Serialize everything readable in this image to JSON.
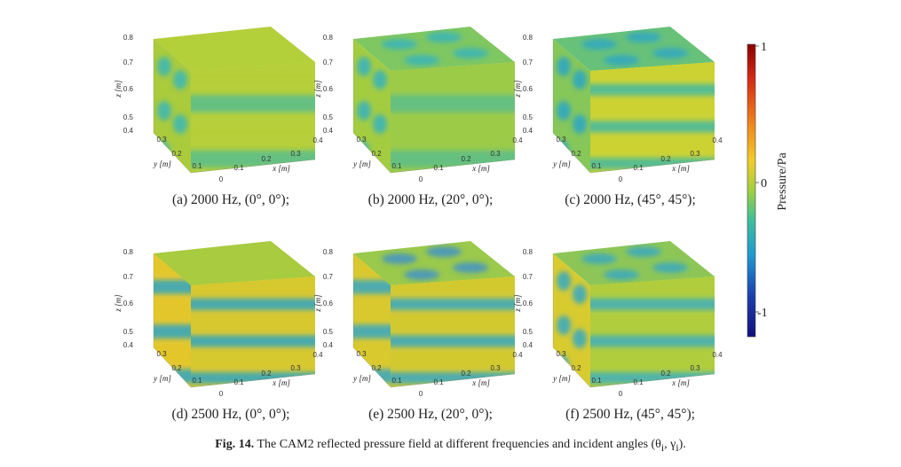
{
  "panels": [
    {
      "id": "a",
      "label": "(a) 2000 Hz, (0°, 0°);",
      "pattern": "a"
    },
    {
      "id": "b",
      "label": "(b) 2000 Hz, (20°, 0°);",
      "pattern": "b"
    },
    {
      "id": "c",
      "label": "(c) 2000 Hz, (45°, 45°);",
      "pattern": "c"
    },
    {
      "id": "d",
      "label": "(d) 2500 Hz, (0°, 0°);",
      "pattern": "d"
    },
    {
      "id": "e",
      "label": "(e) 2500 Hz, (20°, 0°);",
      "pattern": "e"
    },
    {
      "id": "f",
      "label": "(f) 2500 Hz, (45°, 45°);",
      "pattern": "f"
    }
  ],
  "axes": {
    "z_label": "z [m]",
    "y_label": "y [m]",
    "x_label": "x [m]",
    "z_ticks": [
      "0.8",
      "0.7",
      "0.6",
      "0.5",
      "0.4"
    ],
    "y_ticks": [
      "0.3",
      "0.2",
      "0.1"
    ],
    "x_ticks": [
      "0",
      "0.1",
      "0.2",
      "0.3",
      "0.4"
    ]
  },
  "colorbar": {
    "title": "Pressure/Pa",
    "ticks": [
      "1",
      "0",
      "-1"
    ],
    "colors": [
      "#8b0000",
      "#d62a14",
      "#f08a1c",
      "#f2cc2a",
      "#b7d23a",
      "#6bc46d",
      "#27b5b0",
      "#1f86d0",
      "#1a3fae",
      "#14107a"
    ]
  },
  "figure_caption": {
    "prefix": "Fig. 14.",
    "text": "The CAM2 reflected pressure field at different frequencies and incident angles (θ",
    "sub1": "i",
    "mid": ", γ",
    "sub2": "i",
    "end": ")."
  }
}
